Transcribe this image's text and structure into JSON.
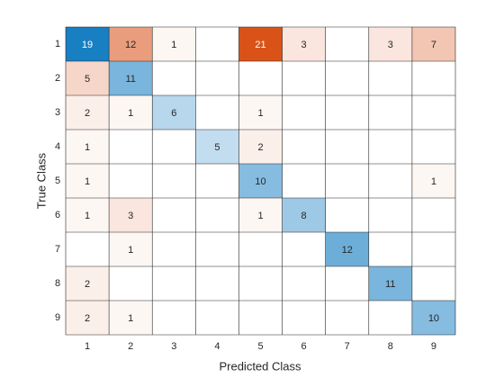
{
  "chart_data": {
    "type": "confusion",
    "xlabel": "Predicted Class",
    "ylabel": "True Class",
    "categories": [
      "1",
      "2",
      "3",
      "4",
      "5",
      "6",
      "7",
      "8",
      "9"
    ],
    "matrix": [
      [
        19,
        12,
        1,
        null,
        21,
        3,
        null,
        3,
        7
      ],
      [
        5,
        11,
        null,
        null,
        null,
        null,
        null,
        null,
        null
      ],
      [
        2,
        1,
        6,
        null,
        1,
        null,
        null,
        null,
        null
      ],
      [
        1,
        null,
        null,
        5,
        2,
        null,
        null,
        null,
        null
      ],
      [
        1,
        null,
        null,
        null,
        10,
        null,
        null,
        null,
        1
      ],
      [
        1,
        3,
        null,
        null,
        1,
        8,
        null,
        null,
        null
      ],
      [
        null,
        1,
        null,
        null,
        null,
        null,
        12,
        null,
        null
      ],
      [
        2,
        null,
        null,
        null,
        null,
        null,
        null,
        11,
        null
      ],
      [
        2,
        1,
        null,
        null,
        null,
        null,
        null,
        null,
        10
      ]
    ],
    "diagonal_color": "#0072bd",
    "off_diagonal_color": "#d95319"
  }
}
